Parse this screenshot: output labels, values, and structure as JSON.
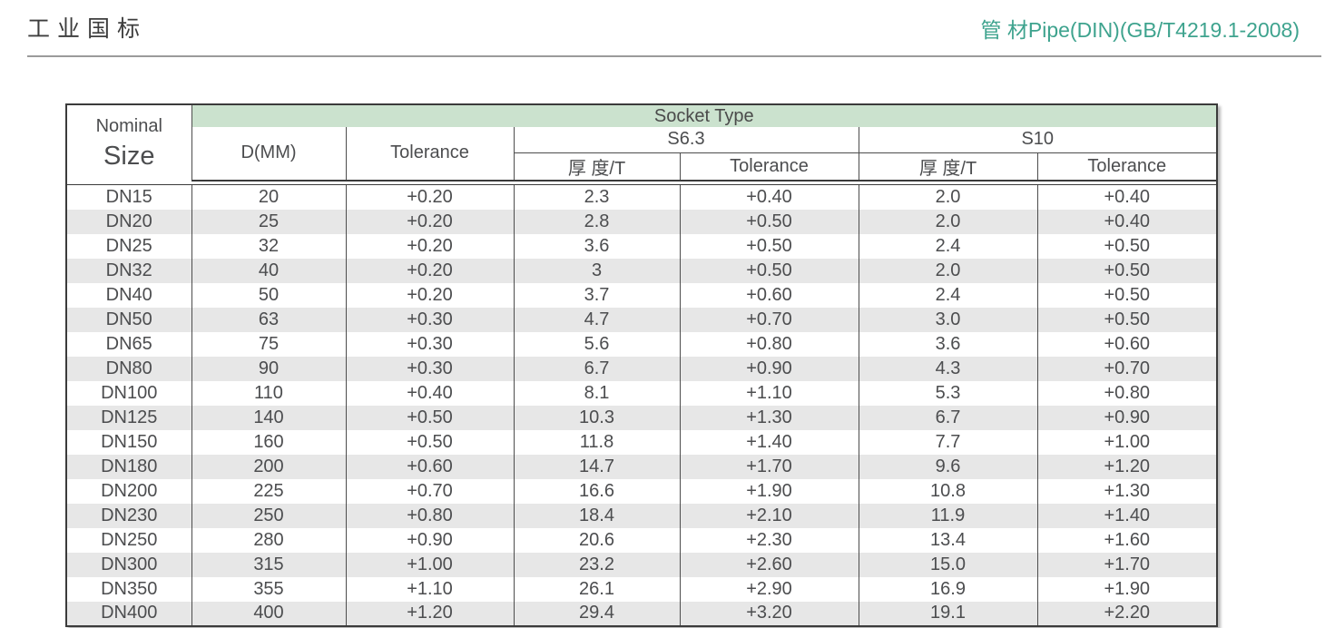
{
  "header": {
    "title_left": "工业国标",
    "title_right": "管 材Pipe(DIN)(GB/T4219.1-2008)"
  },
  "table": {
    "nominal_label_line1": "Nominal",
    "nominal_label_line2": "Size",
    "socket_type_label": "Socket Type",
    "columns": {
      "d": "D(MM)",
      "tolerance": "Tolerance",
      "thickness": "厚 度/T"
    },
    "groups": [
      "S6.3",
      "S10"
    ],
    "rows": [
      [
        "DN15",
        "20",
        "+0.20",
        "2.3",
        "+0.40",
        "2.0",
        "+0.40"
      ],
      [
        "DN20",
        "25",
        "+0.20",
        "2.8",
        "+0.50",
        "2.0",
        "+0.40"
      ],
      [
        "DN25",
        "32",
        "+0.20",
        "3.6",
        "+0.50",
        "2.4",
        "+0.50"
      ],
      [
        "DN32",
        "40",
        "+0.20",
        "3",
        "+0.50",
        "2.0",
        "+0.50"
      ],
      [
        "DN40",
        "50",
        "+0.20",
        "3.7",
        "+0.60",
        "2.4",
        "+0.50"
      ],
      [
        "DN50",
        "63",
        "+0.30",
        "4.7",
        "+0.70",
        "3.0",
        "+0.50"
      ],
      [
        "DN65",
        "75",
        "+0.30",
        "5.6",
        "+0.80",
        "3.6",
        "+0.60"
      ],
      [
        "DN80",
        "90",
        "+0.30",
        "6.7",
        "+0.90",
        "4.3",
        "+0.70"
      ],
      [
        "DN100",
        "110",
        "+0.40",
        "8.1",
        "+1.10",
        "5.3",
        "+0.80"
      ],
      [
        "DN125",
        "140",
        "+0.50",
        "10.3",
        "+1.30",
        "6.7",
        "+0.90"
      ],
      [
        "DN150",
        "160",
        "+0.50",
        "11.8",
        "+1.40",
        "7.7",
        "+1.00"
      ],
      [
        "DN180",
        "200",
        "+0.60",
        "14.7",
        "+1.70",
        "9.6",
        "+1.20"
      ],
      [
        "DN200",
        "225",
        "+0.70",
        "16.6",
        "+1.90",
        "10.8",
        "+1.30"
      ],
      [
        "DN230",
        "250",
        "+0.80",
        "18.4",
        "+2.10",
        "11.9",
        "+1.40"
      ],
      [
        "DN250",
        "280",
        "+0.90",
        "20.6",
        "+2.30",
        "13.4",
        "+1.60"
      ],
      [
        "DN300",
        "315",
        "+1.00",
        "23.2",
        "+2.60",
        "15.0",
        "+1.70"
      ],
      [
        "DN350",
        "355",
        "+1.10",
        "26.1",
        "+2.90",
        "16.9",
        "+1.90"
      ],
      [
        "DN400",
        "400",
        "+1.20",
        "29.4",
        "+3.20",
        "19.1",
        "+2.20"
      ]
    ]
  },
  "colors": {
    "accent_green": "#cbe2ce",
    "title_teal": "#3ea38e",
    "stripe_gray": "#e7e7e7",
    "border_dark": "#3b3b3b",
    "text_gray": "#4c4d4f"
  }
}
